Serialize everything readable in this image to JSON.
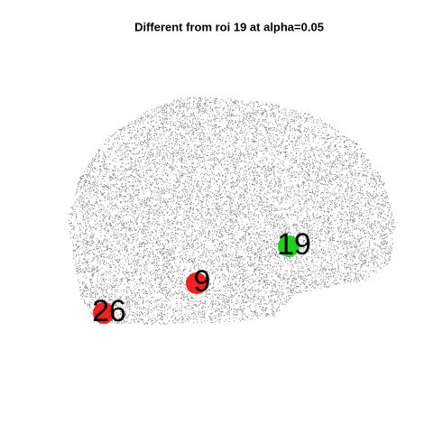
{
  "title": "Different from roi 19 at alpha=0.05",
  "rois": [
    {
      "label": "19",
      "color": "#22cc22"
    },
    {
      "label": "9",
      "color": "#ee2222"
    },
    {
      "label": "26",
      "color": "#ee2222"
    }
  ]
}
